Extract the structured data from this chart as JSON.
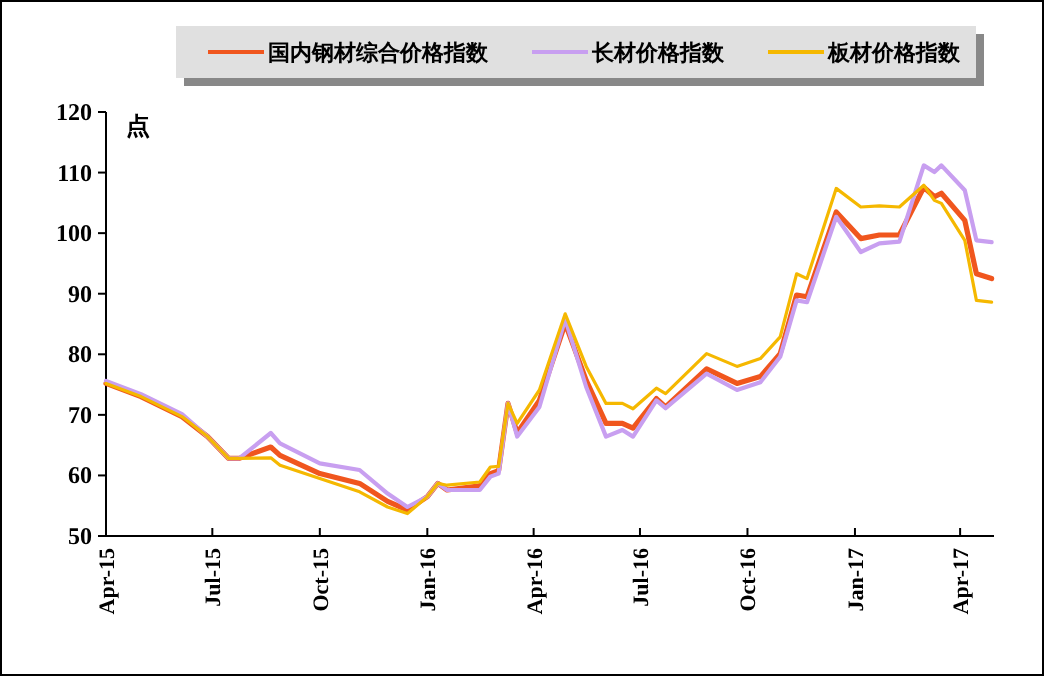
{
  "chart_data": {
    "type": "line",
    "ylabel": "点",
    "legend": "top",
    "grid": false,
    "x": [
      "2015-04-01",
      "2015-05-01",
      "2015-06-05",
      "2015-06-27",
      "2015-07-15",
      "2015-07-24",
      "2015-08-20",
      "2015-08-28",
      "2015-10-01",
      "2015-11-04",
      "2015-11-28",
      "2015-12-15",
      "2016-01-01",
      "2016-01-10",
      "2016-01-18",
      "2016-02-15",
      "2016-02-24",
      "2016-03-02",
      "2016-03-10",
      "2016-03-18",
      "2016-04-06",
      "2016-04-28",
      "2016-05-16",
      "2016-06-02",
      "2016-06-16",
      "2016-06-25",
      "2016-07-15",
      "2016-07-23",
      "2016-08-27",
      "2016-09-22",
      "2016-10-12",
      "2016-10-29",
      "2016-11-12",
      "2016-11-21",
      "2016-12-16",
      "2017-01-06",
      "2017-01-22",
      "2017-02-08",
      "2017-03-01",
      "2017-03-10",
      "2017-03-16",
      "2017-04-05",
      "2017-04-15",
      "2017-04-28"
    ],
    "series": [
      {
        "name": "国内钢材综合价格指数",
        "color": "#f0561e",
        "values": [
          75.2,
          73.0,
          69.7,
          66.4,
          62.8,
          62.8,
          64.7,
          63.3,
          60.3,
          58.7,
          55.7,
          54.3,
          56.5,
          58.7,
          57.6,
          58.3,
          60.3,
          60.8,
          71.9,
          67.0,
          72.4,
          85.1,
          75.7,
          68.6,
          68.6,
          67.8,
          72.7,
          71.3,
          77.6,
          75.2,
          76.3,
          80.1,
          89.8,
          89.5,
          103.5,
          99.1,
          99.7,
          99.7,
          107.6,
          106.0,
          106.6,
          102.1,
          93.3,
          92.5
        ]
      },
      {
        "name": "长材价格指数",
        "color": "#c89ff0",
        "values": [
          75.6,
          73.4,
          70.1,
          66.4,
          62.8,
          62.8,
          67.0,
          65.3,
          62.0,
          60.9,
          57.0,
          54.8,
          56.5,
          58.7,
          57.6,
          57.6,
          59.8,
          60.3,
          71.9,
          66.4,
          71.3,
          85.8,
          74.6,
          66.4,
          67.5,
          66.4,
          72.4,
          71.1,
          76.8,
          74.1,
          75.4,
          79.6,
          88.9,
          88.6,
          102.7,
          96.9,
          98.3,
          98.6,
          111.2,
          110.1,
          111.2,
          107.1,
          98.8,
          98.5
        ]
      },
      {
        "name": "板材价格指数",
        "color": "#f5b800",
        "values": [
          75.2,
          73.0,
          69.7,
          66.4,
          62.8,
          62.8,
          62.9,
          61.7,
          59.5,
          57.3,
          54.8,
          53.7,
          56.5,
          58.7,
          58.4,
          58.9,
          61.4,
          61.5,
          71.9,
          68.6,
          74.1,
          86.7,
          78.0,
          71.9,
          71.9,
          71.0,
          74.4,
          73.5,
          80.1,
          78.0,
          79.3,
          82.9,
          93.3,
          92.5,
          107.4,
          104.3,
          104.5,
          104.3,
          107.9,
          105.4,
          104.9,
          98.8,
          88.9,
          88.6
        ]
      }
    ],
    "xlim": [
      "2015-04-01",
      "2017-04-30"
    ],
    "xticks": [
      {
        "value": "2015-04-01",
        "label": "Apr-15"
      },
      {
        "value": "2015-07-01",
        "label": "Jul-15"
      },
      {
        "value": "2015-10-01",
        "label": "Oct-15"
      },
      {
        "value": "2016-01-01",
        "label": "Jan-16"
      },
      {
        "value": "2016-04-01",
        "label": "Apr-16"
      },
      {
        "value": "2016-07-01",
        "label": "Jul-16"
      },
      {
        "value": "2016-10-01",
        "label": "Oct-16"
      },
      {
        "value": "2017-01-01",
        "label": "Jan-17"
      },
      {
        "value": "2017-04-01",
        "label": "Apr-17"
      }
    ],
    "ylim": [
      50,
      120
    ],
    "yticks": [
      50,
      60,
      70,
      80,
      90,
      100,
      110,
      120
    ]
  }
}
